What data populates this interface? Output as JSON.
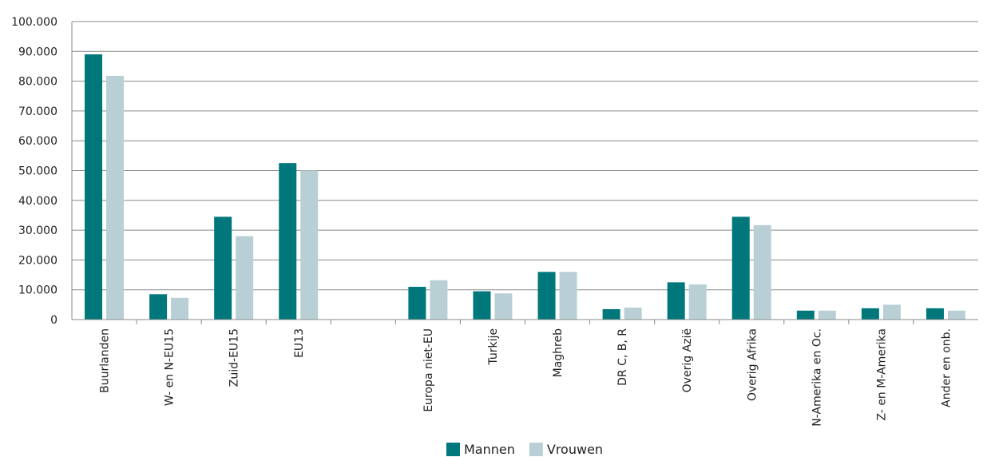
{
  "chart_data": {
    "type": "bar",
    "categories": [
      "Buurlanden",
      "W- en N-EU15",
      "Zuid-EU15",
      "EU13",
      "",
      "Europa niet-EU",
      "Turkije",
      "Maghreb",
      "DR C, B, R",
      "Overig Azië",
      "Overig Afrika",
      "N-Amerika en Oc.",
      "Z- en M-Amerika",
      "Ander en onb."
    ],
    "series": [
      {
        "name": "Mannen",
        "color": "#00777b",
        "values": [
          89000,
          8500,
          34500,
          52500,
          null,
          11000,
          9500,
          16000,
          3500,
          12500,
          34500,
          3000,
          3800,
          3800
        ]
      },
      {
        "name": "Vrouwen",
        "color": "#b9cfd6",
        "values": [
          81800,
          7300,
          28000,
          50000,
          null,
          13200,
          8800,
          16000,
          4000,
          11800,
          31700,
          3000,
          5000,
          3000
        ]
      }
    ],
    "yticks": [
      "0",
      "10.000",
      "20.000",
      "30.000",
      "40.000",
      "50.000",
      "60.000",
      "70.000",
      "80.000",
      "90.000",
      "100.000"
    ],
    "ylim": [
      0,
      100000
    ],
    "grid": true,
    "legend_position": "bottom-center",
    "title": "",
    "xlabel": "",
    "ylabel": ""
  }
}
